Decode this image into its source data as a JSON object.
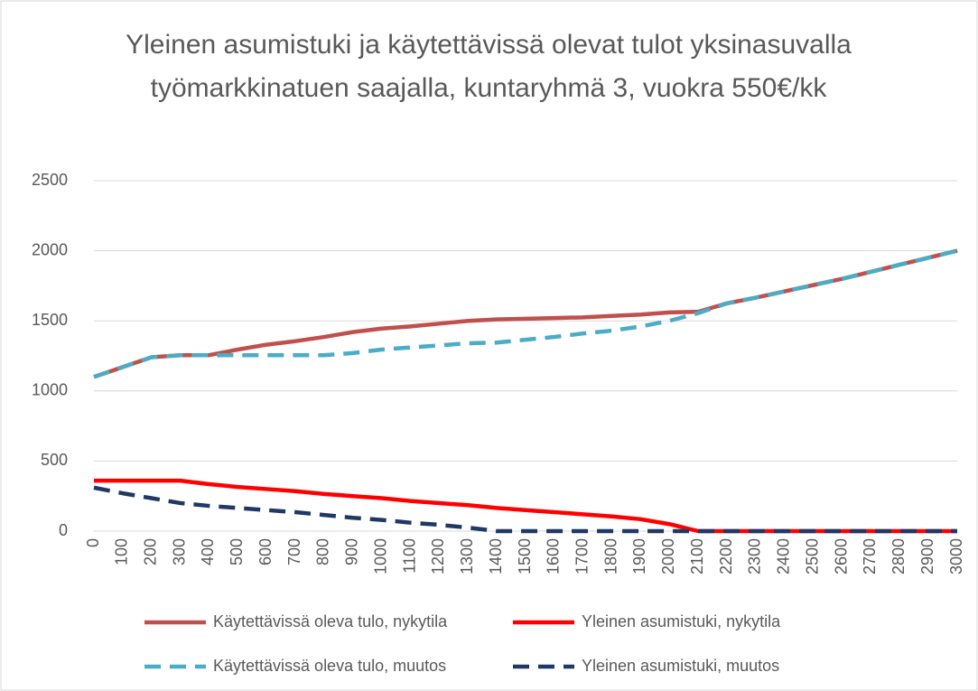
{
  "chart_data": {
    "type": "line",
    "title": "Yleinen asumistuki ja käytettävissä olevat tulot yksinasuvalla työmarkkinatuen saajalla, kuntaryhmä 3, vuokra 550€/kk",
    "x": [
      0,
      100,
      200,
      300,
      400,
      500,
      600,
      700,
      800,
      900,
      1000,
      1100,
      1200,
      1300,
      1400,
      1500,
      1600,
      1700,
      1800,
      1900,
      2000,
      2100,
      2200,
      2300,
      2400,
      2500,
      2600,
      2700,
      2800,
      2900,
      3000
    ],
    "xlim": [
      0,
      3000
    ],
    "xticks": [
      0,
      100,
      200,
      300,
      400,
      500,
      600,
      700,
      800,
      900,
      1000,
      1100,
      1200,
      1300,
      1400,
      1500,
      1600,
      1700,
      1800,
      1900,
      2000,
      2100,
      2200,
      2300,
      2400,
      2500,
      2600,
      2700,
      2800,
      2900,
      3000
    ],
    "ylim": [
      0,
      2500
    ],
    "yticks": [
      0,
      500,
      1000,
      1500,
      2000,
      2500
    ],
    "grid": true,
    "legend": "bottom",
    "series": [
      {
        "name": "Käytettävissä oleva tulo, nykytila",
        "color": "#c0504d",
        "dashed": false,
        "values": [
          1100,
          1170,
          1240,
          1255,
          1255,
          1295,
          1330,
          1355,
          1385,
          1420,
          1445,
          1460,
          1480,
          1500,
          1510,
          1515,
          1520,
          1525,
          1535,
          1545,
          1560,
          1565,
          1625,
          1665,
          1710,
          1755,
          1800,
          1850,
          1900,
          1950,
          2000
        ]
      },
      {
        "name": "Yleinen asumistuki, nykytila",
        "color": "#ff0000",
        "dashed": false,
        "values": [
          360,
          360,
          360,
          360,
          335,
          315,
          300,
          285,
          265,
          250,
          235,
          215,
          200,
          185,
          165,
          150,
          135,
          120,
          105,
          85,
          50,
          0,
          0,
          0,
          0,
          0,
          0,
          0,
          0,
          0,
          0
        ]
      },
      {
        "name": "Käytettävissä oleva tulo, muutos",
        "color": "#4bacc6",
        "dashed": true,
        "values": [
          1100,
          1170,
          1240,
          1255,
          1255,
          1255,
          1255,
          1255,
          1255,
          1270,
          1295,
          1310,
          1325,
          1340,
          1345,
          1365,
          1385,
          1410,
          1430,
          1460,
          1500,
          1555,
          1625,
          1665,
          1710,
          1755,
          1800,
          1850,
          1900,
          1950,
          2000
        ]
      },
      {
        "name": "Yleinen asumistuki, muutos",
        "color": "#1f3864",
        "dashed": true,
        "values": [
          310,
          270,
          235,
          200,
          180,
          165,
          150,
          135,
          115,
          95,
          80,
          60,
          45,
          25,
          0,
          0,
          0,
          0,
          0,
          0,
          0,
          0,
          0,
          0,
          0,
          0,
          0,
          0,
          0,
          0,
          0
        ]
      }
    ]
  }
}
